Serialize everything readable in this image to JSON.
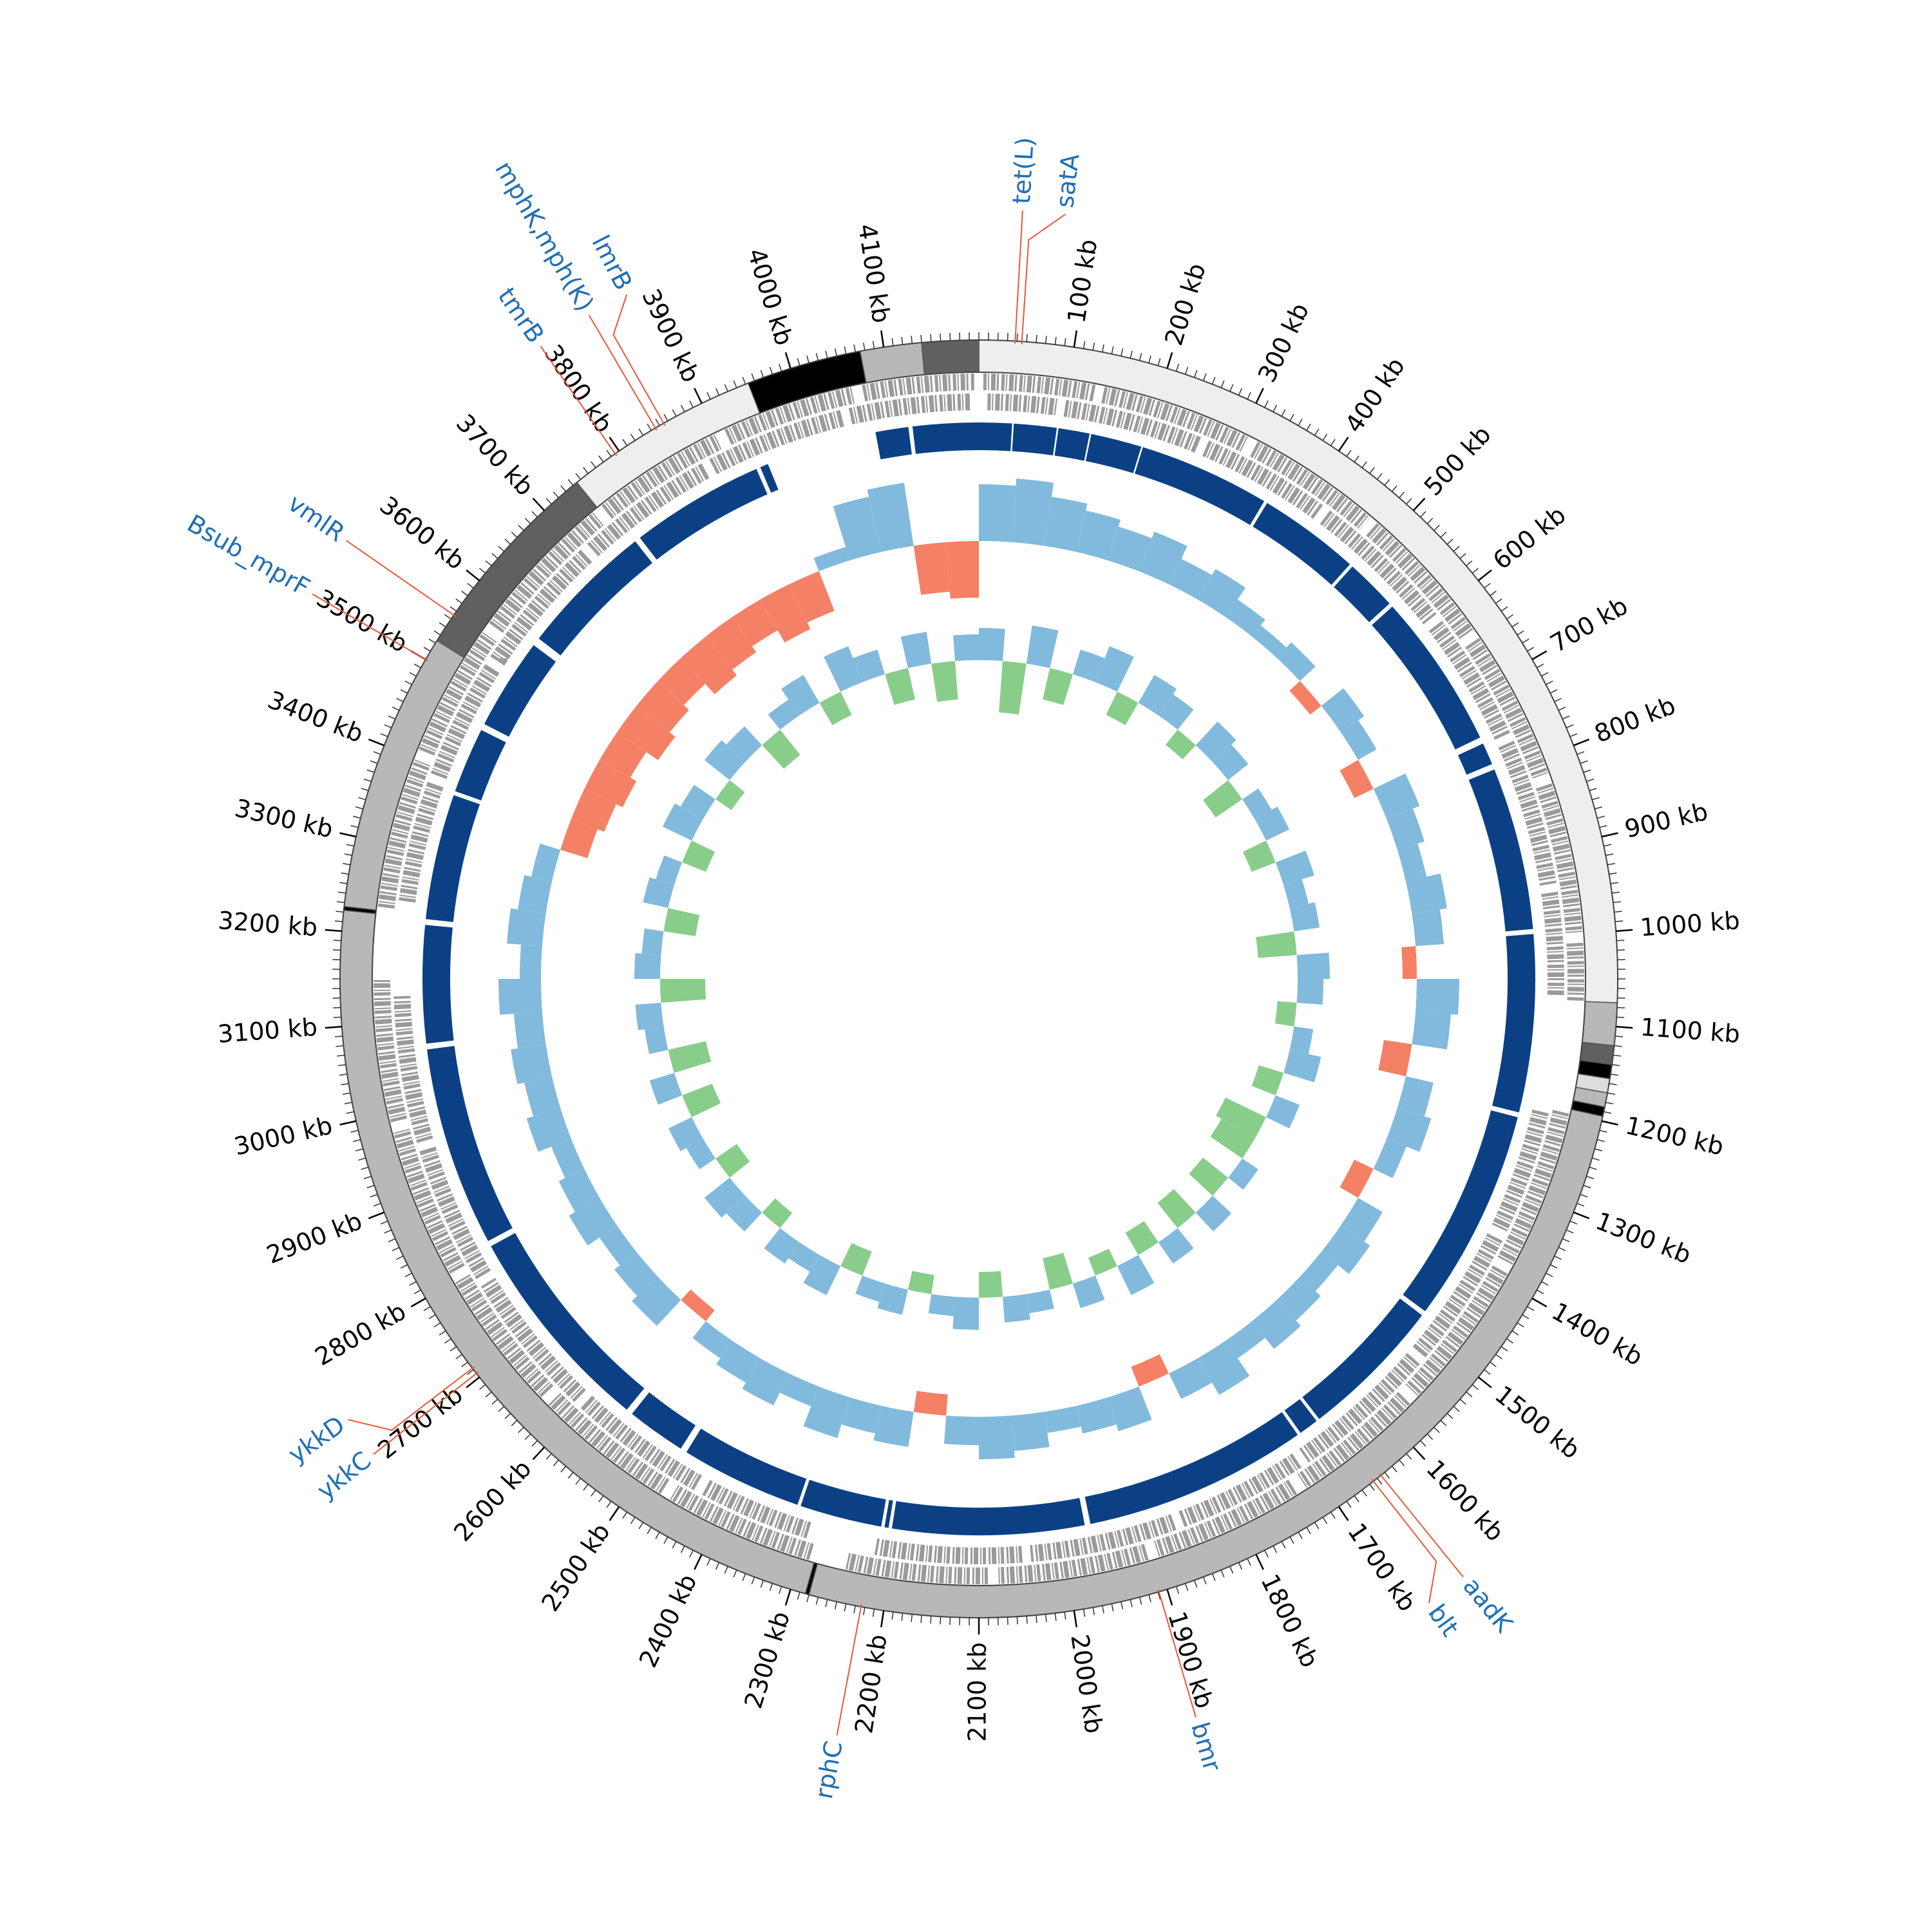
{
  "chart_data": {
    "type": "circos",
    "xlim": [
      0,
      4200
    ],
    "xticks": [
      {
        "value": 100,
        "label": "100 kb"
      },
      {
        "value": 200,
        "label": "200 kb"
      },
      {
        "value": 300,
        "label": "300 kb"
      },
      {
        "value": 400,
        "label": "400 kb"
      },
      {
        "value": 500,
        "label": "500 kb"
      },
      {
        "value": 600,
        "label": "600 kb"
      },
      {
        "value": 700,
        "label": "700 kb"
      },
      {
        "value": 800,
        "label": "800 kb"
      },
      {
        "value": 900,
        "label": "900 kb"
      },
      {
        "value": 1000,
        "label": "1000 kb"
      },
      {
        "value": 1100,
        "label": "1100 kb"
      },
      {
        "value": 1200,
        "label": "1200 kb"
      },
      {
        "value": 1300,
        "label": "1300 kb"
      },
      {
        "value": 1400,
        "label": "1400 kb"
      },
      {
        "value": 1500,
        "label": "1500 kb"
      },
      {
        "value": 1600,
        "label": "1600 kb"
      },
      {
        "value": 1700,
        "label": "1700 kb"
      },
      {
        "value": 1800,
        "label": "1800 kb"
      },
      {
        "value": 1900,
        "label": "1900 kb"
      },
      {
        "value": 2000,
        "label": "2000 kb"
      },
      {
        "value": 2100,
        "label": "2100 kb"
      },
      {
        "value": 2200,
        "label": "2200 kb"
      },
      {
        "value": 2300,
        "label": "2300 kb"
      },
      {
        "value": 2400,
        "label": "2400 kb"
      },
      {
        "value": 2500,
        "label": "2500 kb"
      },
      {
        "value": 2600,
        "label": "2600 kb"
      },
      {
        "value": 2700,
        "label": "2700 kb"
      },
      {
        "value": 2800,
        "label": "2800 kb"
      },
      {
        "value": 2900,
        "label": "2900 kb"
      },
      {
        "value": 3000,
        "label": "3000 kb"
      },
      {
        "value": 3100,
        "label": "3100 kb"
      },
      {
        "value": 3200,
        "label": "3200 kb"
      },
      {
        "value": 3300,
        "label": "3300 kb"
      },
      {
        "value": 3400,
        "label": "3400 kb"
      },
      {
        "value": 3500,
        "label": "3500 kb"
      },
      {
        "value": 3600,
        "label": "3600 kb"
      },
      {
        "value": 3700,
        "label": "3700 kb"
      },
      {
        "value": 3800,
        "label": "3800 kb"
      },
      {
        "value": 3900,
        "label": "3900 kb"
      },
      {
        "value": 4000,
        "label": "4000 kb"
      },
      {
        "value": 4100,
        "label": "4100 kb"
      }
    ],
    "minor_tick_step": 10,
    "contigs": [
      {
        "start": 0,
        "end": 1075,
        "color": "#eeeeee"
      },
      {
        "start": 1075,
        "end": 1120,
        "color": "#b8b8b8"
      },
      {
        "start": 1120,
        "end": 1140,
        "color": "#606060"
      },
      {
        "start": 1140,
        "end": 1155,
        "color": "#000000"
      },
      {
        "start": 1155,
        "end": 1170,
        "color": "#dddddd"
      },
      {
        "start": 1170,
        "end": 1185,
        "color": "#b8b8b8"
      },
      {
        "start": 1185,
        "end": 1195,
        "color": "#000000"
      },
      {
        "start": 1195,
        "end": 2280,
        "color": "#b8b8b8"
      },
      {
        "start": 2280,
        "end": 2284,
        "color": "#000000"
      },
      {
        "start": 2284,
        "end": 3222,
        "color": "#b8b8b8"
      },
      {
        "start": 3222,
        "end": 3226,
        "color": "#000000"
      },
      {
        "start": 3226,
        "end": 3523,
        "color": "#b8b8b8"
      },
      {
        "start": 3523,
        "end": 3745,
        "color": "#606060"
      },
      {
        "start": 3745,
        "end": 3953,
        "color": "#eeeeee"
      },
      {
        "start": 3953,
        "end": 4075,
        "color": "#000000"
      },
      {
        "start": 4075,
        "end": 4140,
        "color": "#b8b8b8"
      },
      {
        "start": 4140,
        "end": 4200,
        "color": "#606060"
      }
    ],
    "genes": {
      "color": "#9a9a9a",
      "forward": [
        [
          5,
          130
        ],
        [
          140,
          310
        ],
        [
          320,
          470
        ],
        [
          480,
          640
        ],
        [
          650,
          820
        ],
        [
          830,
          1000
        ],
        [
          1010,
          1075
        ],
        [
          1200,
          1380
        ],
        [
          1390,
          1560
        ],
        [
          1570,
          1720
        ],
        [
          1730,
          1900
        ],
        [
          1910,
          2080
        ],
        [
          2090,
          2250
        ],
        [
          2290,
          2460
        ],
        [
          2470,
          2630
        ],
        [
          2640,
          2800
        ],
        [
          2810,
          2980
        ],
        [
          2990,
          3150
        ],
        [
          3230,
          3400
        ],
        [
          3410,
          3560
        ],
        [
          3570,
          3740
        ],
        [
          3750,
          3900
        ],
        [
          3910,
          4060
        ],
        [
          4070,
          4195
        ]
      ],
      "reverse": [
        [
          10,
          90
        ],
        [
          100,
          260
        ],
        [
          270,
          420
        ],
        [
          430,
          600
        ],
        [
          610,
          760
        ],
        [
          770,
          940
        ],
        [
          950,
          1070
        ],
        [
          1205,
          1350
        ],
        [
          1360,
          1520
        ],
        [
          1530,
          1700
        ],
        [
          1710,
          1860
        ],
        [
          1870,
          2040
        ],
        [
          2050,
          2220
        ],
        [
          2300,
          2430
        ],
        [
          2440,
          2600
        ],
        [
          2610,
          2780
        ],
        [
          2790,
          2950
        ],
        [
          2960,
          3130
        ],
        [
          3240,
          3380
        ],
        [
          3390,
          3530
        ],
        [
          3540,
          3700
        ],
        [
          3710,
          3870
        ],
        [
          3880,
          4040
        ],
        [
          4050,
          4190
        ]
      ]
    },
    "blocks": {
      "color": "#0b4184",
      "ranges": [
        [
          0,
          40
        ],
        [
          42,
          94
        ],
        [
          96,
          134
        ],
        [
          136,
          198
        ],
        [
          200,
          360
        ],
        [
          364,
          488
        ],
        [
          492,
          555
        ],
        [
          560,
          750
        ],
        [
          758,
          785
        ],
        [
          792,
          990
        ],
        [
          996,
          1212
        ],
        [
          1218,
          1478
        ],
        [
          1484,
          1660
        ],
        [
          1664,
          1688
        ],
        [
          1692,
          1965
        ],
        [
          1972,
          2205
        ],
        [
          2209,
          2214
        ],
        [
          2218,
          2318
        ],
        [
          2322,
          2470
        ],
        [
          2478,
          2550
        ],
        [
          2558,
          2815
        ],
        [
          2822,
          3065
        ],
        [
          3072,
          3215
        ],
        [
          3222,
          3375
        ],
        [
          3380,
          3460
        ],
        [
          3468,
          3580
        ],
        [
          3590,
          3755
        ],
        [
          3762,
          3925
        ],
        [
          3930,
          3940
        ],
        [
          4075,
          4115
        ],
        [
          4120,
          4200
        ]
      ]
    },
    "x": [
      0,
      50,
      100,
      150,
      200,
      250,
      300,
      350,
      400,
      450,
      500,
      550,
      600,
      650,
      700,
      750,
      800,
      850,
      900,
      950,
      1000,
      1050,
      1100,
      1150,
      1200,
      1250,
      1300,
      1350,
      1400,
      1450,
      1500,
      1550,
      1600,
      1650,
      1700,
      1750,
      1800,
      1850,
      1900,
      1950,
      2000,
      2050,
      2100,
      2150,
      2200,
      2250,
      2300,
      2350,
      2400,
      2450,
      2500,
      2550,
      2600,
      2650,
      2700,
      2750,
      2800,
      2850,
      2900,
      2950,
      3000,
      3050,
      3100,
      3150,
      3200,
      3250,
      3300,
      3350,
      3400,
      3450,
      3500,
      3550,
      3600,
      3650,
      3700,
      3750,
      3800,
      3850,
      3900,
      3950,
      4000,
      4050,
      4100,
      4150
    ],
    "gc": {
      "ylim": [
        -1,
        1
      ],
      "positive_color": "#6baed6",
      "negative_color": "#f26b4a",
      "values": [
        0.8,
        0.9,
        0.7,
        0.6,
        0.5,
        0.6,
        0.4,
        0.5,
        0.3,
        0.2,
        0.3,
        -0.2,
        0.4,
        0.3,
        -0.3,
        0.5,
        0.4,
        0.3,
        0.5,
        0.4,
        -0.2,
        0.6,
        0.5,
        -0.4,
        0.4,
        0.5,
        0.3,
        -0.3,
        0.4,
        0.5,
        0.3,
        0.4,
        0.5,
        0.3,
        0.6,
        0.4,
        -0.3,
        0.5,
        0.4,
        0.3,
        0.5,
        0.6,
        0.4,
        -0.3,
        0.5,
        0.4,
        0.6,
        0.3,
        0.5,
        0.4,
        0.3,
        -0.2,
        0.5,
        0.4,
        0.3,
        0.5,
        0.4,
        0.3,
        0.5,
        0.4,
        0.5,
        0.4,
        0.6,
        0.3,
        0.5,
        0.4,
        0.3,
        -0.4,
        -0.5,
        -0.6,
        -0.5,
        -0.7,
        -0.6,
        -0.5,
        -0.7,
        -0.6,
        -0.5,
        -0.7,
        -0.6,
        0.2,
        0.8,
        0.9,
        -0.7,
        -0.8
      ]
    },
    "skew": {
      "ylim": [
        -1,
        1
      ],
      "positive_color": "#6baed6",
      "negative_color": "#74c476",
      "values": [
        0.5,
        -0.8,
        0.6,
        -0.5,
        0.4,
        0.6,
        -0.4,
        0.5,
        0.4,
        -0.3,
        0.5,
        0.4,
        -0.5,
        0.3,
        0.4,
        -0.4,
        0.5,
        0.3,
        0.4,
        -0.6,
        0.5,
        0.4,
        -0.3,
        0.3,
        0.5,
        -0.4,
        0.4,
        -0.7,
        -0.6,
        0.3,
        -0.5,
        0.4,
        -0.5,
        0.4,
        -0.4,
        0.5,
        -0.3,
        0.4,
        -0.5,
        0.3,
        0.4,
        -0.4,
        0.5,
        0.3,
        -0.3,
        0.4,
        0.3,
        -0.4,
        0.5,
        0.3,
        0.4,
        -0.3,
        0.4,
        0.5,
        -0.4,
        0.3,
        0.4,
        -0.5,
        0.4,
        -0.6,
        0.3,
        0.4,
        -0.7,
        0.4,
        0.3,
        -0.5,
        0.4,
        0.3,
        -0.4,
        0.5,
        0.4,
        -0.3,
        0.5,
        0.4,
        -0.5,
        0.3,
        0.5,
        -0.4,
        0.6,
        0.4,
        -0.5,
        0.5,
        -0.6,
        0.4
      ]
    },
    "annotation_color": "#1f6fb4",
    "leader_color": "#e8583a",
    "annotations": [
      {
        "label": "tet(L)",
        "position": 38
      },
      {
        "label": "satA",
        "position": 45
      },
      {
        "label": "aadK",
        "position": 1645
      },
      {
        "label": "blt",
        "position": 1655
      },
      {
        "label": "bmr",
        "position": 1909
      },
      {
        "label": "rphC",
        "position": 2224
      },
      {
        "label": "ykkC",
        "position": 2705
      },
      {
        "label": "ykkD",
        "position": 2712
      },
      {
        "label": "Bsub_mprF",
        "position": 3500
      },
      {
        "label": "vmlR",
        "position": 3555
      },
      {
        "label": "tmrB",
        "position": 3795
      },
      {
        "label": "mphK,mph(K)",
        "position": 3845
      },
      {
        "label": "lmrB",
        "position": 3855
      }
    ]
  }
}
